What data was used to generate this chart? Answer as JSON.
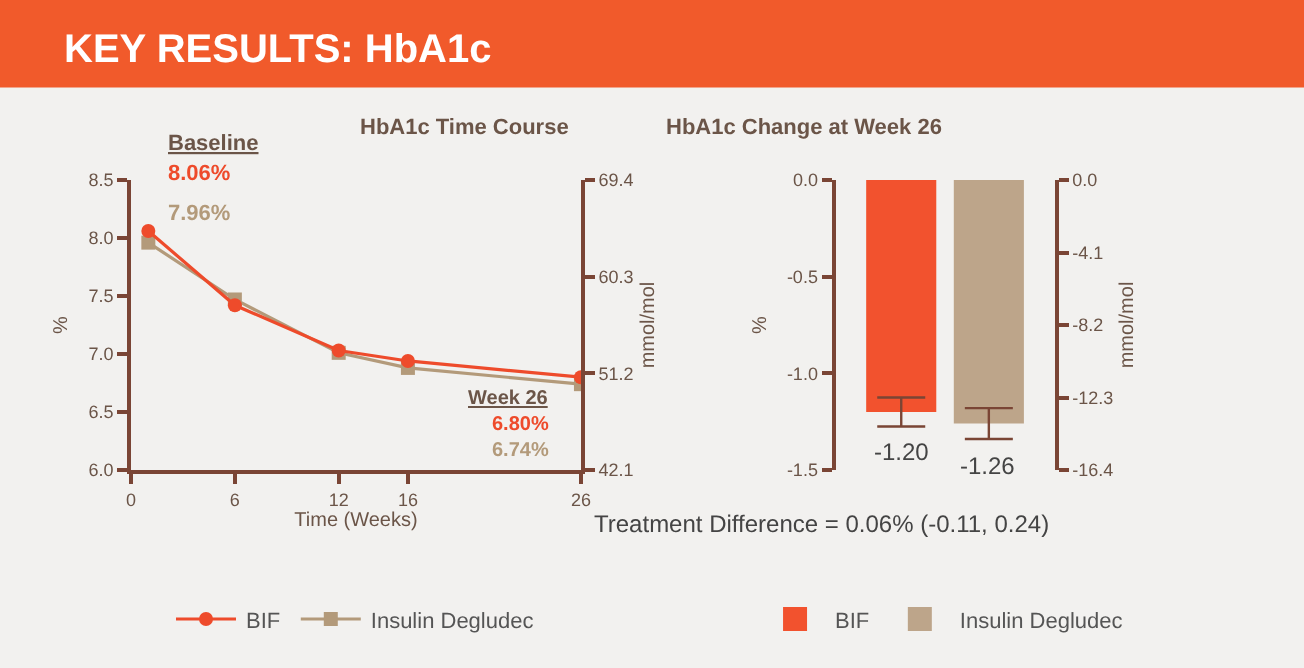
{
  "chart_data": [
    {
      "type": "line",
      "title": "HbA1c Time Course",
      "xlabel": "Time (Weeks)",
      "ylabel": "%",
      "y2label": "mmol/mol",
      "x": [
        1,
        6,
        12,
        16,
        26
      ],
      "series": [
        {
          "name": "BIF",
          "color": "#ee4b2b",
          "marker": "circle",
          "values": [
            8.06,
            7.42,
            7.03,
            6.94,
            6.8
          ]
        },
        {
          "name": "Insulin Degludec",
          "color": "#b39a7a",
          "marker": "square",
          "values": [
            7.96,
            7.47,
            7.01,
            6.88,
            6.74
          ]
        }
      ],
      "xlim": [
        0,
        26
      ],
      "xticks": [
        0,
        6,
        12,
        16,
        26
      ],
      "ylim": [
        6.0,
        8.5
      ],
      "yticks": [
        {
          "value": 6.0,
          "label": "6.0"
        },
        6.5,
        {
          "value": 7.0,
          "label": "7.0"
        },
        7.5,
        {
          "value": 8.0,
          "label": "8.0"
        },
        8.5
      ],
      "y2lim": [
        42.1,
        69.4
      ],
      "y2ticks": [
        42.1,
        51.2,
        60.3,
        69.4
      ],
      "annotations": [
        "KEY RESULTS: HbA1c",
        "Baseline",
        {
          "text": "8.06%",
          "x": 1,
          "y": 8.06
        },
        {
          "text": "7.96%",
          "x": 1,
          "y": 7.96
        },
        "Week 26",
        "6.80%",
        "6.74%"
      ],
      "grid": false,
      "legend": "bottom",
      "line_style": "solid"
    },
    {
      "type": "bar",
      "title": "HbA1c Change at Week 26",
      "ylabel": "%",
      "y2label": "mmol/mol",
      "categories": [
        null
      ],
      "series": [
        {
          "name": "BIF",
          "color": "#f2522e",
          "values": [
            -1.2
          ],
          "errors": [
            0.075
          ],
          "value_labels": [
            "-1.20"
          ]
        },
        {
          "name": "Insulin Degludec",
          "color": "#bda58a",
          "values": [
            -1.26
          ],
          "errors": [
            0.08
          ],
          "value_labels": [
            "-1.26"
          ]
        }
      ],
      "ylim": [
        -1.5,
        0.0
      ],
      "yticks": [
        {
          "value": -1.5,
          "label": "-1.5"
        },
        {
          "value": -1.0,
          "label": "-1.0"
        },
        -0.5,
        {
          "value": 0.0,
          "label": "0.0"
        }
      ],
      "y2lim": [
        -16.4,
        0.0
      ],
      "y2ticks": [
        -16.4,
        -12.3,
        -8.2,
        -4.1,
        {
          "value": 0.0,
          "label": "0.0"
        }
      ],
      "annotations": [
        "Treatment Difference = 0.06% (-0.11, 0.24)"
      ],
      "grid": false,
      "legend": "bottom"
    }
  ]
}
